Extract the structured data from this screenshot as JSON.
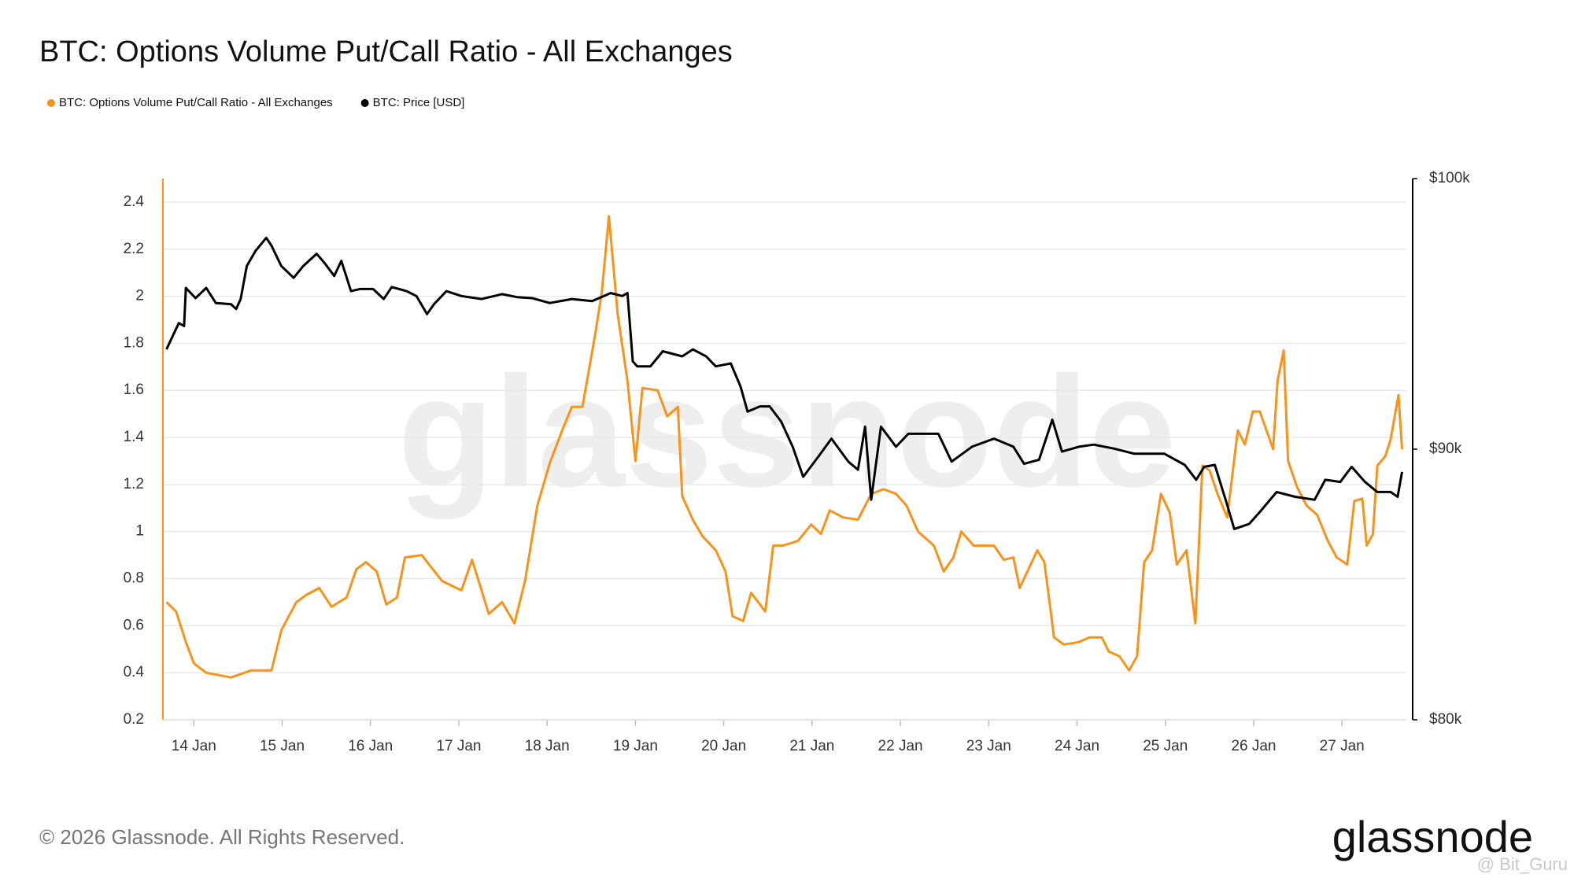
{
  "chart_data": {
    "type": "line",
    "title": "BTC: Options Volume Put/Call Ratio - All Exchanges",
    "legend": "top-left",
    "grid": true,
    "xlim": [
      -0.35,
      13.72
    ],
    "xticks": [
      {
        "value": 0,
        "label": "14 Jan"
      },
      {
        "value": 1,
        "label": "15 Jan"
      },
      {
        "value": 2,
        "label": "16 Jan"
      },
      {
        "value": 3,
        "label": "17 Jan"
      },
      {
        "value": 4,
        "label": "18 Jan"
      },
      {
        "value": 5,
        "label": "19 Jan"
      },
      {
        "value": 6,
        "label": "20 Jan"
      },
      {
        "value": 7,
        "label": "21 Jan"
      },
      {
        "value": 8,
        "label": "22 Jan"
      },
      {
        "value": 9,
        "label": "23 Jan"
      },
      {
        "value": 10,
        "label": "24 Jan"
      },
      {
        "value": 11,
        "label": "25 Jan"
      },
      {
        "value": 12,
        "label": "26 Jan"
      },
      {
        "value": 13,
        "label": "27 Jan"
      }
    ],
    "ylim": [
      0.2,
      2.5
    ],
    "yticks": [
      0.2,
      0.4,
      0.6,
      0.8,
      1,
      1.2,
      1.4,
      1.6,
      1.8,
      2,
      2.2,
      2.4
    ],
    "y2lim": [
      80000,
      100000
    ],
    "y2ticks": [
      {
        "value": 80000,
        "label": "$80k"
      },
      {
        "value": 90000,
        "label": "$90k"
      },
      {
        "value": 100000,
        "label": "$100k"
      }
    ],
    "series": [
      {
        "name": "BTC: Options Volume Put/Call Ratio - All Exchanges",
        "color": "#f7931a",
        "axis": "y",
        "x": [
          -0.31,
          -0.2,
          -0.09,
          0,
          0.14,
          0.42,
          0.65,
          0.88,
          0.99,
          1.16,
          1.27,
          1.42,
          1.56,
          1.73,
          1.84,
          1.95,
          2.07,
          2.18,
          2.3,
          2.39,
          2.58,
          2.81,
          3.03,
          3.15,
          3.34,
          3.49,
          3.63,
          3.75,
          3.89,
          4.03,
          4.17,
          4.28,
          4.4,
          4.55,
          4.62,
          4.7,
          4.8,
          4.91,
          5,
          5.08,
          5.25,
          5.36,
          5.48,
          5.53,
          5.65,
          5.76,
          5.91,
          6.02,
          6.1,
          6.22,
          6.31,
          6.47,
          6.56,
          6.67,
          6.84,
          6.99,
          7.1,
          7.2,
          7.35,
          7.52,
          7.67,
          7.81,
          7.95,
          8.07,
          8.2,
          8.38,
          8.49,
          8.6,
          8.69,
          8.83,
          9.06,
          9.17,
          9.28,
          9.35,
          9.55,
          9.63,
          9.74,
          9.85,
          10.02,
          10.14,
          10.28,
          10.36,
          10.48,
          10.59,
          10.68,
          10.76,
          10.85,
          10.95,
          11.05,
          11.13,
          11.24,
          11.34,
          11.42,
          11.5,
          11.59,
          11.7,
          11.82,
          11.9,
          11.99,
          12.07,
          12.22,
          12.27,
          12.34,
          12.39,
          12.49,
          12.6,
          12.72,
          12.84,
          12.94,
          13.06,
          13.14,
          13.23,
          13.28,
          13.35,
          13.4,
          13.49,
          13.55,
          13.64,
          13.68
        ],
        "values": [
          0.7,
          0.66,
          0.53,
          0.44,
          0.4,
          0.38,
          0.41,
          0.41,
          0.58,
          0.7,
          0.73,
          0.76,
          0.68,
          0.72,
          0.84,
          0.87,
          0.83,
          0.69,
          0.72,
          0.89,
          0.9,
          0.79,
          0.75,
          0.88,
          0.65,
          0.7,
          0.61,
          0.79,
          1.11,
          1.29,
          1.43,
          1.53,
          1.53,
          1.85,
          2.02,
          2.34,
          1.92,
          1.64,
          1.3,
          1.61,
          1.6,
          1.49,
          1.53,
          1.15,
          1.05,
          0.98,
          0.92,
          0.83,
          0.64,
          0.62,
          0.74,
          0.66,
          0.94,
          0.94,
          0.96,
          1.03,
          0.99,
          1.09,
          1.06,
          1.05,
          1.16,
          1.18,
          1.16,
          1.11,
          1,
          0.94,
          0.83,
          0.89,
          1,
          0.94,
          0.94,
          0.88,
          0.89,
          0.76,
          0.92,
          0.87,
          0.55,
          0.52,
          0.53,
          0.55,
          0.55,
          0.49,
          0.47,
          0.41,
          0.47,
          0.87,
          0.92,
          1.16,
          1.08,
          0.86,
          0.92,
          0.61,
          1.28,
          1.26,
          1.16,
          1.06,
          1.43,
          1.37,
          1.51,
          1.51,
          1.35,
          1.64,
          1.77,
          1.3,
          1.19,
          1.11,
          1.07,
          0.96,
          0.89,
          0.86,
          1.13,
          1.14,
          0.94,
          0.99,
          1.28,
          1.32,
          1.39,
          1.58,
          1.35
        ]
      },
      {
        "name": "BTC: Price [USD]",
        "color": "#000000",
        "axis": "y2",
        "x": [
          -0.31,
          -0.17,
          -0.11,
          -0.09,
          0.02,
          0.14,
          0.25,
          0.42,
          0.48,
          0.53,
          0.6,
          0.7,
          0.82,
          0.88,
          0.99,
          1.13,
          1.24,
          1.39,
          1.48,
          1.59,
          1.67,
          1.78,
          1.88,
          2.03,
          2.15,
          2.24,
          2.41,
          2.52,
          2.64,
          2.72,
          2.86,
          3.03,
          3.26,
          3.49,
          3.66,
          3.83,
          4.03,
          4.28,
          4.51,
          4.72,
          4.85,
          4.91,
          4.97,
          5.02,
          5.17,
          5.31,
          5.53,
          5.65,
          5.8,
          5.91,
          6.08,
          6.19,
          6.27,
          6.41,
          6.52,
          6.65,
          6.78,
          6.9,
          7.07,
          7.22,
          7.41,
          7.52,
          7.6,
          7.67,
          7.78,
          7.95,
          8.09,
          8.26,
          8.43,
          8.58,
          8.81,
          9.06,
          9.28,
          9.4,
          9.57,
          9.72,
          9.83,
          10.02,
          10.19,
          10.42,
          10.65,
          10.99,
          11.22,
          11.35,
          11.44,
          11.56,
          11.69,
          11.78,
          11.95,
          12.07,
          12.26,
          12.47,
          12.69,
          12.81,
          12.98,
          13.11,
          13.26,
          13.4,
          13.55,
          13.63,
          13.68
        ],
        "values": [
          93690,
          94660,
          94550,
          95960,
          95580,
          95960,
          95400,
          95360,
          95180,
          95550,
          96770,
          97330,
          97810,
          97520,
          96770,
          96330,
          96770,
          97220,
          96880,
          96400,
          96960,
          95840,
          95920,
          95920,
          95550,
          95990,
          95840,
          95660,
          94990,
          95360,
          95840,
          95660,
          95550,
          95730,
          95620,
          95580,
          95400,
          95550,
          95470,
          95770,
          95660,
          95770,
          93250,
          93060,
          93060,
          93620,
          93430,
          93690,
          93430,
          93060,
          93170,
          92320,
          91390,
          91580,
          91580,
          91020,
          90090,
          88980,
          89720,
          90390,
          89540,
          89240,
          90830,
          88130,
          90830,
          90090,
          90570,
          90570,
          90570,
          89540,
          90090,
          90390,
          90090,
          89460,
          89610,
          91090,
          89910,
          90090,
          90170,
          90020,
          89830,
          89830,
          89420,
          88870,
          89350,
          89420,
          88050,
          87050,
          87240,
          87680,
          88420,
          88240,
          88130,
          88870,
          88790,
          89350,
          88790,
          88420,
          88420,
          88240,
          89160
        ]
      }
    ]
  },
  "footer": "© 2026 Glassnode. All Rights Reserved.",
  "logo": "glassnode",
  "watermark_user": "@ Bit_Guru"
}
